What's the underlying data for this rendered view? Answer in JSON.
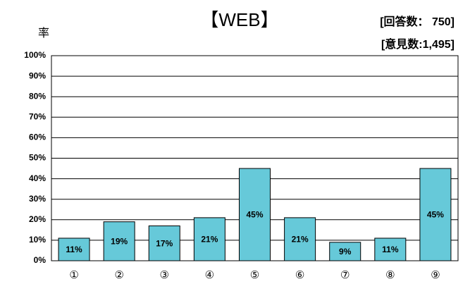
{
  "chart_data": {
    "type": "bar",
    "title": "【WEB】",
    "annotations": [
      "[回答数： 750]",
      "[意見数:1,495]"
    ],
    "y_label": "率",
    "categories": [
      "①",
      "②",
      "③",
      "④",
      "⑤",
      "⑥",
      "⑦",
      "⑧",
      "⑨"
    ],
    "values": [
      11,
      19,
      17,
      21,
      45,
      21,
      9,
      11,
      45
    ],
    "value_labels": [
      "11%",
      "19%",
      "17%",
      "21%",
      "45%",
      "21%",
      "9%",
      "11%",
      "45%"
    ],
    "color": "#66c9d9",
    "ylim": [
      0,
      100
    ],
    "yticks": [
      {
        "value": 0,
        "label": "0%"
      },
      {
        "value": 10,
        "label": "10%"
      },
      {
        "value": 20,
        "label": "20%"
      },
      {
        "value": 30,
        "label": "30%"
      },
      {
        "value": 40,
        "label": "40%"
      },
      {
        "value": 50,
        "label": "50%"
      },
      {
        "value": 60,
        "label": "60%"
      },
      {
        "value": 70,
        "label": "70%"
      },
      {
        "value": 80,
        "label": "80%"
      },
      {
        "value": 90,
        "label": "90%"
      },
      {
        "value": 100,
        "label": "100%"
      }
    ],
    "grid": true
  }
}
